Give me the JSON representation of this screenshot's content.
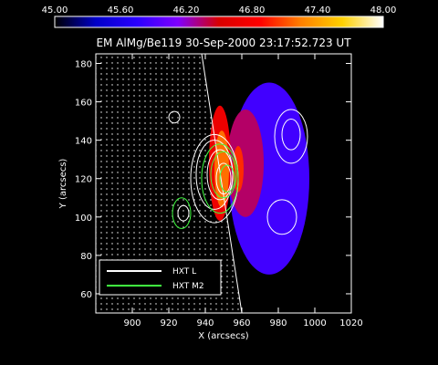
{
  "chart_data": {
    "type": "heatmap",
    "title": "EM AlMg/Be119 30-Sep-2000 23:17:52.723 UT",
    "xlabel": "X (arcsecs)",
    "ylabel": "Y (arcsecs)",
    "xlim": [
      880,
      1020
    ],
    "ylim": [
      50,
      185
    ],
    "xticks": [
      900,
      920,
      940,
      960,
      980,
      1000,
      1020
    ],
    "yticks": [
      60,
      80,
      100,
      120,
      140,
      160,
      180
    ],
    "colorbar": {
      "min": 45.0,
      "max": 48.0,
      "ticks": [
        "45.00",
        "45.60",
        "46.20",
        "46.80",
        "47.40",
        "48.00"
      ],
      "colors": [
        "#000000",
        "#0000c8",
        "#2a00ff",
        "#7f00ff",
        "#d80000",
        "#ff0000",
        "#ff8000",
        "#ffd000",
        "#ffffff"
      ]
    },
    "limb": {
      "x1_top": 938,
      "x2_bottom": 960
    },
    "legend": {
      "placement": "bottom-left",
      "entries": [
        {
          "label": "HXT L",
          "color": "#ffffff"
        },
        {
          "label": "HXT M2",
          "color": "#40ff40"
        }
      ]
    },
    "emission_regions": [
      {
        "cx": 975,
        "cy": 120,
        "rx": 22,
        "ry": 50,
        "level": 45.85
      },
      {
        "cx": 962,
        "cy": 128,
        "rx": 10,
        "ry": 28,
        "level": 46.35
      },
      {
        "cx": 948,
        "cy": 128,
        "rx": 6,
        "ry": 30,
        "level": 46.7
      },
      {
        "cx": 949,
        "cy": 125,
        "rx": 4,
        "ry": 20,
        "level": 47.2
      },
      {
        "cx": 958,
        "cy": 125,
        "rx": 3,
        "ry": 12,
        "level": 47.0
      }
    ],
    "contours_L": [
      {
        "cx": 945,
        "cy": 120,
        "rx": 13,
        "ry": 23
      },
      {
        "cx": 945,
        "cy": 122,
        "rx": 10,
        "ry": 18
      },
      {
        "cx": 948,
        "cy": 122,
        "rx": 7,
        "ry": 13
      },
      {
        "cx": 950,
        "cy": 120,
        "rx": 4,
        "ry": 8
      },
      {
        "cx": 987,
        "cy": 142,
        "rx": 9,
        "ry": 14
      },
      {
        "cx": 987,
        "cy": 143,
        "rx": 5,
        "ry": 8
      },
      {
        "cx": 982,
        "cy": 100,
        "rx": 8,
        "ry": 9
      },
      {
        "cx": 928,
        "cy": 102,
        "rx": 3,
        "ry": 4
      },
      {
        "cx": 923,
        "cy": 152,
        "rx": 3,
        "ry": 3
      }
    ],
    "contours_M2": [
      {
        "cx": 948,
        "cy": 120,
        "rx": 10,
        "ry": 18
      },
      {
        "cx": 950,
        "cy": 122,
        "rx": 7,
        "ry": 12
      },
      {
        "cx": 952,
        "cy": 120,
        "rx": 4,
        "ry": 7
      },
      {
        "cx": 927,
        "cy": 102,
        "rx": 5,
        "ry": 8
      }
    ]
  }
}
